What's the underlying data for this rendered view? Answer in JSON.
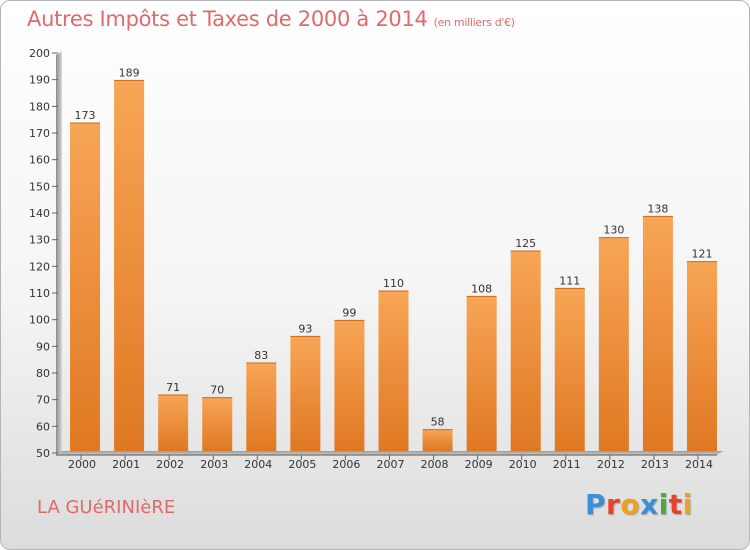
{
  "title": "Autres Impôts et Taxes de 2000 à 2014",
  "subtitle": "(en milliers d'€)",
  "commune": "LA GUéRINIèRE",
  "logo": {
    "text": "Proxiti",
    "colors": [
      "#3a8fd8",
      "#e8412c",
      "#f0a020",
      "#3a8fd8",
      "#4aa83c",
      "#e8412c",
      "#f0a020"
    ]
  },
  "colors": {
    "bar_top": "#f7a556",
    "bar_bottom": "#e07822",
    "title": "#e06a6a"
  },
  "chart_data": {
    "type": "bar",
    "categories": [
      "2000",
      "2001",
      "2002",
      "2003",
      "2004",
      "2005",
      "2006",
      "2007",
      "2008",
      "2009",
      "2010",
      "2011",
      "2012",
      "2013",
      "2014"
    ],
    "values": [
      173,
      189,
      71,
      70,
      83,
      93,
      99,
      110,
      58,
      108,
      125,
      111,
      130,
      138,
      121
    ],
    "ylim": [
      50,
      200
    ],
    "yticks": [
      50,
      60,
      70,
      80,
      90,
      100,
      110,
      120,
      130,
      140,
      150,
      160,
      170,
      180,
      190,
      200
    ],
    "grid": false,
    "data_labels": true
  }
}
